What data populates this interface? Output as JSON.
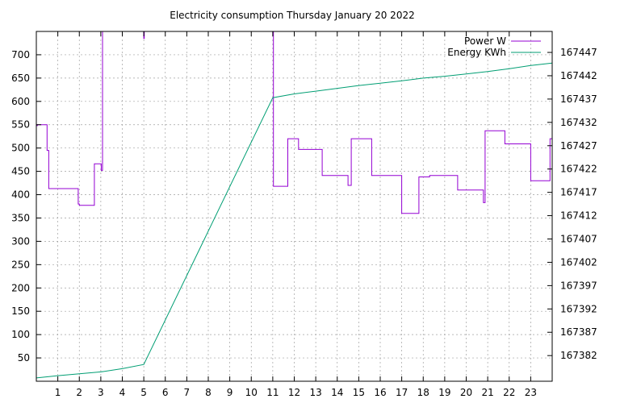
{
  "chart_data": {
    "type": "line",
    "title": "Electricity consumption Thursday January 20 2022",
    "xlabel": "",
    "ylabel": "",
    "y2label": "",
    "xlim": [
      0,
      24
    ],
    "ylim": [
      0,
      750
    ],
    "y2lim": [
      167376.5,
      167451.5
    ],
    "grid": true,
    "legend_position": "top-right",
    "x_ticks": [
      1,
      2,
      3,
      4,
      5,
      6,
      7,
      8,
      9,
      10,
      11,
      12,
      13,
      14,
      15,
      16,
      17,
      18,
      19,
      20,
      21,
      22,
      23
    ],
    "y_ticks": [
      50,
      100,
      150,
      200,
      250,
      300,
      350,
      400,
      450,
      500,
      550,
      600,
      650,
      700
    ],
    "y2_ticks": [
      167382,
      167387,
      167392,
      167397,
      167402,
      167407,
      167412,
      167417,
      167422,
      167427,
      167432,
      167437,
      167442,
      167447
    ],
    "series": [
      {
        "name": "Power W",
        "axis": "y",
        "color": "#9400d3",
        "step": true,
        "x": [
          0,
          0.05,
          0.05,
          0.5,
          0.5,
          0.58,
          0.58,
          0.65,
          0.65,
          1.95,
          1.95,
          2.0,
          2.0,
          2.7,
          2.7,
          3.02,
          3.02,
          3.08,
          3.08,
          3.1,
          3.1,
          5.0,
          5.0,
          5.02,
          5.02,
          11.03,
          11.03,
          11.08,
          11.08,
          11.7,
          11.7,
          12.2,
          12.2,
          13.3,
          13.3,
          14.5,
          14.5,
          14.65,
          14.65,
          15.6,
          15.6,
          17.0,
          17.0,
          17.8,
          17.8,
          18.3,
          18.3,
          19.6,
          19.6,
          20.8,
          20.8,
          20.88,
          20.88,
          21.8,
          21.8,
          23.0,
          23.0,
          23.9,
          23.9,
          24.0
        ],
        "values": [
          548,
          548,
          550,
          550,
          495,
          495,
          413,
          413,
          413,
          413,
          380,
          380,
          377,
          377,
          466,
          466,
          452,
          452,
          750,
          750,
          750,
          750,
          735,
          735,
          750,
          750,
          418,
          418,
          418,
          418,
          520,
          520,
          497,
          497,
          441,
          441,
          420,
          420,
          520,
          520,
          441,
          441,
          360,
          360,
          438,
          438,
          441,
          441,
          410,
          410,
          383,
          383,
          537,
          537,
          509,
          509,
          430,
          430,
          520,
          520
        ]
      },
      {
        "name": "Energy KWh",
        "axis": "y2",
        "color": "#009e73",
        "step": false,
        "x": [
          0,
          1,
          2,
          3,
          4,
          5,
          11.0,
          12,
          13,
          14,
          15,
          16,
          17,
          18,
          19,
          20,
          21,
          22,
          23,
          24
        ],
        "values": [
          167377.2,
          167377.7,
          167378.1,
          167378.5,
          167379.2,
          167380.1,
          167437.3,
          167438.1,
          167438.7,
          167439.3,
          167439.9,
          167440.4,
          167440.9,
          167441.5,
          167441.9,
          167442.4,
          167442.9,
          167443.5,
          167444.2,
          167444.7
        ]
      }
    ]
  }
}
